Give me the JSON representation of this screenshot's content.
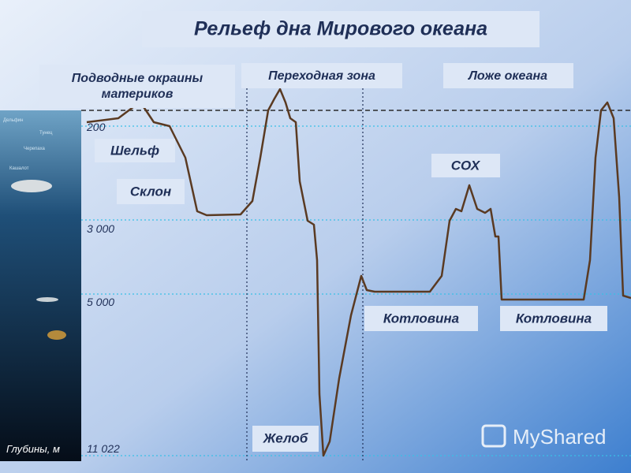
{
  "title": "Рельеф дна Мирового океана",
  "zones": [
    "Подводные окраины материков",
    "Переходная зона",
    "Ложе океана"
  ],
  "depths": [
    "200",
    "3 000",
    "5 000",
    "11 022"
  ],
  "depth_axis_label": "Глубины, м",
  "features": [
    "Шельф",
    "Склон",
    "СОХ",
    "Котловина",
    "Котловина",
    "Желоб"
  ],
  "creatures": [
    "Дельфин",
    "Тунец",
    "Черепаха",
    "Кашалот"
  ],
  "watermark": "MyShared"
}
